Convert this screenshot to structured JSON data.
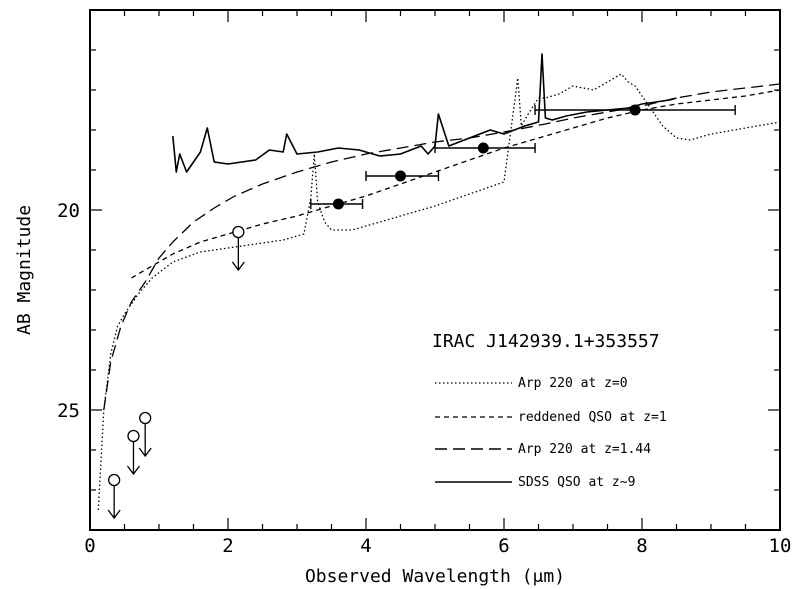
{
  "chart_data": {
    "type": "line",
    "title": "",
    "annotation": "IRAC J142939.1+353557",
    "xlabel": "Observed Wavelength (μm)",
    "ylabel": "AB Magnitude",
    "xlim": [
      0,
      10
    ],
    "ylim": [
      28,
      15
    ],
    "y_inverted": true,
    "grid": false,
    "legend_position": "lower-right",
    "x_ticks": [
      "0",
      "2",
      "4",
      "6",
      "8",
      "10"
    ],
    "y_ticks": [
      "20",
      "25"
    ],
    "photometry_detections": [
      {
        "x": 3.6,
        "y": 19.85,
        "xerr_low": 3.2,
        "xerr_high": 3.95
      },
      {
        "x": 4.5,
        "y": 19.15,
        "xerr_low": 4.0,
        "xerr_high": 5.05
      },
      {
        "x": 5.7,
        "y": 18.45,
        "xerr_low": 5.0,
        "xerr_high": 6.45
      },
      {
        "x": 7.9,
        "y": 17.5,
        "xerr_low": 6.45,
        "xerr_high": 9.35
      }
    ],
    "upper_limits": [
      {
        "x": 0.35,
        "y": 26.75
      },
      {
        "x": 0.63,
        "y": 25.65
      },
      {
        "x": 0.8,
        "y": 25.2
      },
      {
        "x": 2.15,
        "y": 20.55
      }
    ],
    "series": [
      {
        "name": "Arp 220 at z=0",
        "style": "dotted",
        "x": [
          0.12,
          0.2,
          0.3,
          0.4,
          0.5,
          0.7,
          0.9,
          1.2,
          1.6,
          2.0,
          2.4,
          2.8,
          3.1,
          3.2,
          3.25,
          3.3,
          3.4,
          3.5,
          3.8,
          4.3,
          5.0,
          5.5,
          6.0,
          6.1,
          6.2,
          6.25,
          6.35,
          6.5,
          6.6,
          6.8,
          7.0,
          7.3,
          7.6,
          7.7,
          7.8,
          7.9,
          8.1,
          8.3,
          8.5,
          8.7,
          9.0,
          9.5,
          10.0
        ],
        "y": [
          27.5,
          25.0,
          23.6,
          22.9,
          22.6,
          22.1,
          21.7,
          21.3,
          21.05,
          20.95,
          20.85,
          20.75,
          20.6,
          19.7,
          18.6,
          19.8,
          20.3,
          20.5,
          20.5,
          20.25,
          19.9,
          19.6,
          19.3,
          18.0,
          16.7,
          17.9,
          17.6,
          17.2,
          17.2,
          17.1,
          16.9,
          17.0,
          16.7,
          16.6,
          16.8,
          16.9,
          17.4,
          17.9,
          18.2,
          18.25,
          18.1,
          17.95,
          17.8
        ]
      },
      {
        "name": "reddened QSO at z=1",
        "style": "short-dash",
        "x": [
          0.6,
          0.9,
          1.2,
          1.6,
          2.0,
          2.5,
          3.0,
          3.5,
          4.0,
          4.5,
          5.0,
          5.5,
          6.0,
          6.5,
          7.0,
          7.5,
          8.0,
          8.5,
          9.0,
          9.5,
          10.0
        ],
        "y": [
          21.7,
          21.4,
          21.1,
          20.8,
          20.6,
          20.35,
          20.15,
          19.9,
          19.65,
          19.35,
          19.05,
          18.75,
          18.45,
          18.2,
          17.95,
          17.7,
          17.5,
          17.35,
          17.25,
          17.15,
          17.0
        ]
      },
      {
        "name": "Arp 220 at z=1.44",
        "style": "long-dash",
        "x": [
          0.2,
          0.3,
          0.45,
          0.6,
          0.8,
          1.0,
          1.2,
          1.5,
          1.8,
          2.1,
          2.5,
          3.0,
          3.5,
          4.0,
          4.5,
          5.0,
          5.5,
          6.0,
          6.3,
          6.6,
          7.0,
          7.5,
          8.0,
          8.5,
          9.0,
          9.5,
          10.0
        ],
        "y": [
          25.0,
          23.8,
          22.9,
          22.3,
          21.8,
          21.2,
          20.8,
          20.3,
          19.95,
          19.65,
          19.35,
          19.05,
          18.8,
          18.6,
          18.45,
          18.3,
          18.2,
          18.05,
          17.95,
          17.85,
          17.7,
          17.55,
          17.4,
          17.2,
          17.05,
          16.95,
          16.85
        ]
      },
      {
        "name": "SDSS QSO at z~9",
        "style": "solid",
        "x": [
          1.2,
          1.25,
          1.3,
          1.4,
          1.6,
          1.7,
          1.8,
          2.0,
          2.2,
          2.4,
          2.6,
          2.8,
          2.85,
          3.0,
          3.3,
          3.6,
          3.9,
          4.2,
          4.5,
          4.8,
          4.9,
          5.0,
          5.05,
          5.2,
          5.5,
          5.8,
          6.0,
          6.3,
          6.5,
          6.55,
          6.6,
          6.7,
          6.9,
          7.2,
          7.5,
          7.8,
          8.0,
          8.2,
          8.4,
          8.5
        ],
        "y": [
          18.15,
          19.05,
          18.6,
          19.05,
          18.55,
          17.95,
          18.8,
          18.85,
          18.8,
          18.75,
          18.5,
          18.55,
          18.1,
          18.6,
          18.55,
          18.45,
          18.5,
          18.65,
          18.6,
          18.4,
          18.6,
          18.4,
          17.6,
          18.4,
          18.2,
          18.0,
          18.1,
          17.9,
          17.8,
          16.1,
          17.7,
          17.75,
          17.65,
          17.55,
          17.5,
          17.45,
          17.35,
          17.3,
          17.25,
          17.2
        ]
      }
    ]
  }
}
